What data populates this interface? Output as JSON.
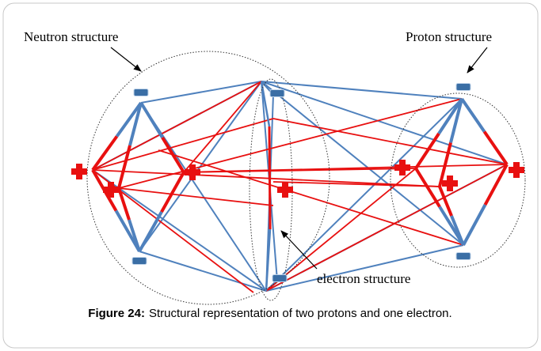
{
  "labels": {
    "neutron": "Neutron structure",
    "proton": "Proton structure",
    "electron": "electron structure"
  },
  "caption": {
    "label": "Figure 24:",
    "text": "Structural representation of two protons and one electron."
  }
}
